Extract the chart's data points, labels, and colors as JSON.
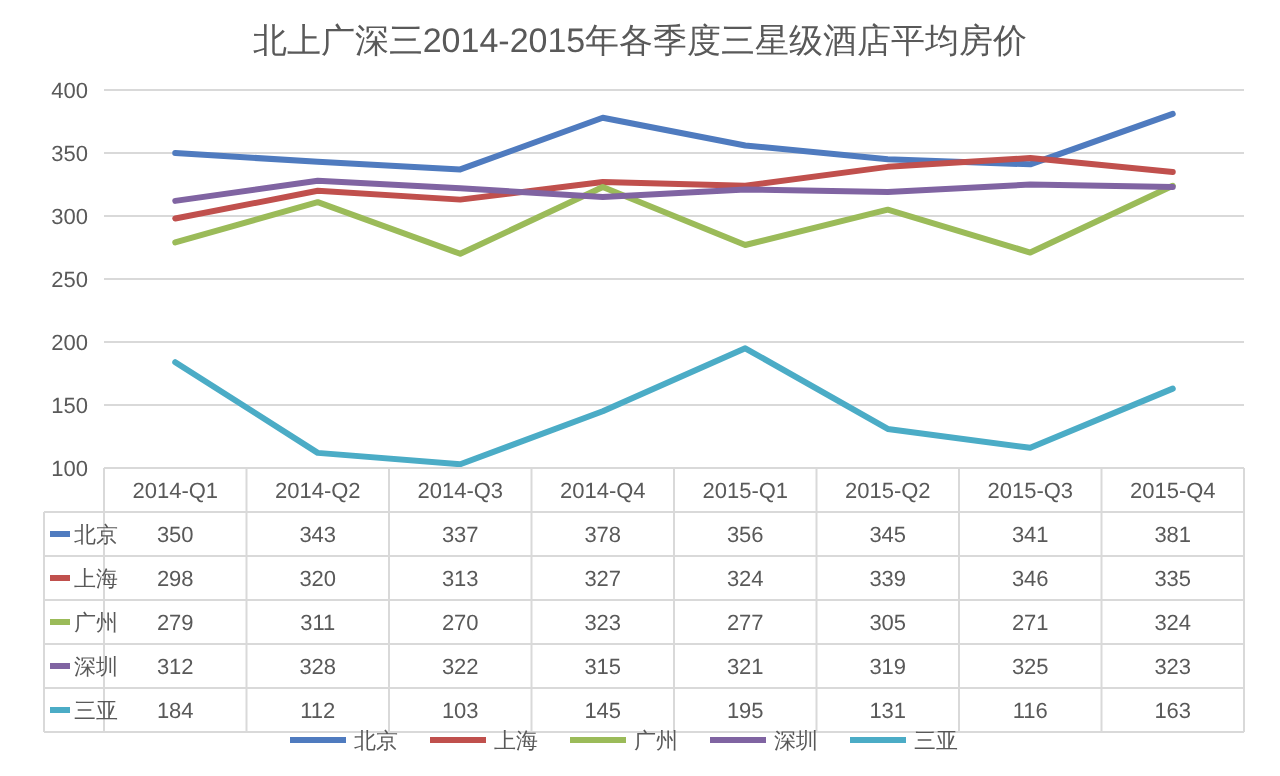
{
  "chart_data": {
    "type": "line",
    "title": "北上广深三2014-2015年各季度三星级酒店平均房价",
    "categories": [
      "2014-Q1",
      "2014-Q2",
      "2014-Q3",
      "2014-Q4",
      "2015-Q1",
      "2015-Q2",
      "2015-Q3",
      "2015-Q4"
    ],
    "series": [
      {
        "name": "北京",
        "color": "#4f7bbf",
        "values": [
          350,
          343,
          337,
          378,
          356,
          345,
          341,
          381
        ]
      },
      {
        "name": "上海",
        "color": "#c0504d",
        "values": [
          298,
          320,
          313,
          327,
          324,
          339,
          346,
          335
        ]
      },
      {
        "name": "广州",
        "color": "#9bbb59",
        "values": [
          279,
          311,
          270,
          323,
          277,
          305,
          271,
          324
        ]
      },
      {
        "name": "深圳",
        "color": "#8064a2",
        "values": [
          312,
          328,
          322,
          315,
          321,
          319,
          325,
          323
        ]
      },
      {
        "name": "三亚",
        "color": "#4bacc6",
        "values": [
          184,
          112,
          103,
          145,
          195,
          131,
          116,
          163
        ]
      }
    ],
    "ylim": [
      100,
      400
    ],
    "yticks": [
      100,
      150,
      200,
      250,
      300,
      350,
      400
    ],
    "grid": "y",
    "legend": "bottom",
    "data_labels": true
  }
}
